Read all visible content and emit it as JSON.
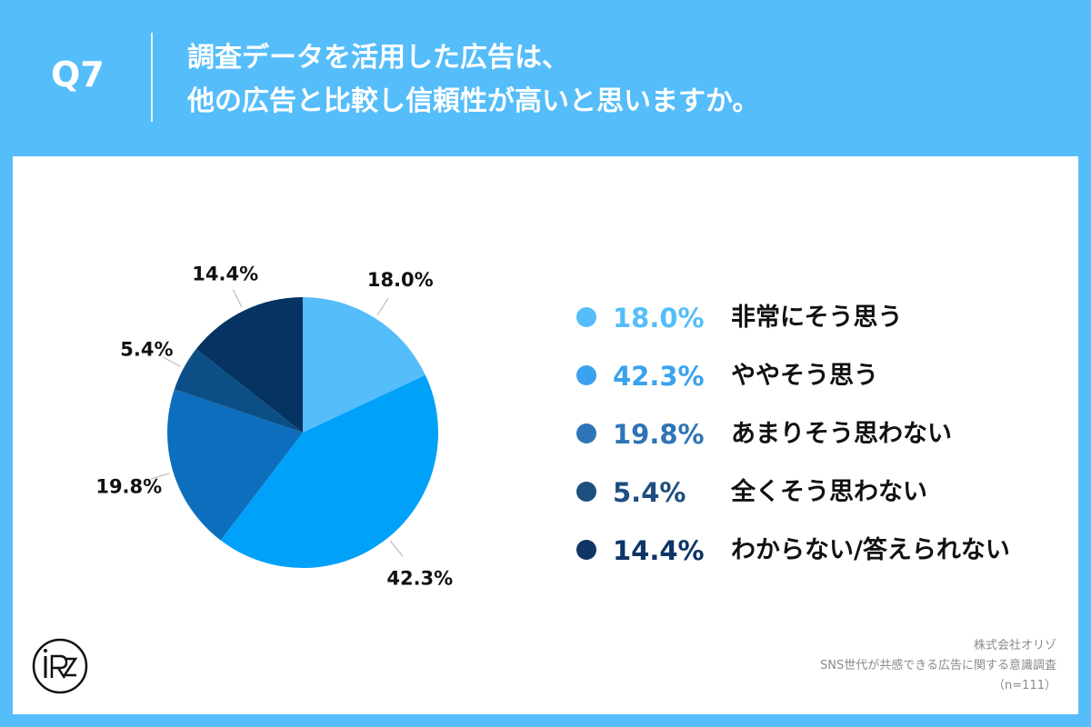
{
  "header": {
    "question_number": "Q7",
    "title_line1": "調査データを活用した広告は、",
    "title_line2": "他の広告と比較し信頼性が高いと思いますか。"
  },
  "chart_data": {
    "type": "pie",
    "slices": [
      {
        "label": "非常にそう思う",
        "value": 18.0,
        "value_label": "18.0%",
        "color": "#55bdfa"
      },
      {
        "label": "ややそう思う",
        "value": 42.3,
        "value_label": "42.3%",
        "color": "#00a1f9"
      },
      {
        "label": "あまりそう思わない",
        "value": 19.8,
        "value_label": "19.8%",
        "color": "#0d6ebd"
      },
      {
        "label": "全くそう思わない",
        "value": 5.4,
        "value_label": "5.4%",
        "color": "#0b4f86"
      },
      {
        "label": "わからない/答えられない",
        "value": 14.4,
        "value_label": "14.4%",
        "color": "#053362"
      }
    ],
    "legend": [
      {
        "pct": "18.0%",
        "label": "非常にそう思う",
        "color": "#55bdfa",
        "text_color": "#55bdfa"
      },
      {
        "pct": "42.3%",
        "label": "ややそう思う",
        "color": "#3aa2ee",
        "text_color": "#3aa2ee"
      },
      {
        "pct": "19.8%",
        "label": "あまりそう思わない",
        "color": "#2f74b6",
        "text_color": "#2f74b6"
      },
      {
        "pct": "5.4%",
        "label": "全くそう思わない",
        "color": "#1d4f7f",
        "text_color": "#1d4f7f"
      },
      {
        "pct": "14.4%",
        "label": "わからない/答えられない",
        "color": "#0e3566",
        "text_color": "#0e3566"
      }
    ],
    "legend_placement": "right"
  },
  "footer": {
    "company": "株式会社オリゾ",
    "survey": "SNS世代が共感できる広告に関する意識調査",
    "sample": "（n=111）"
  }
}
